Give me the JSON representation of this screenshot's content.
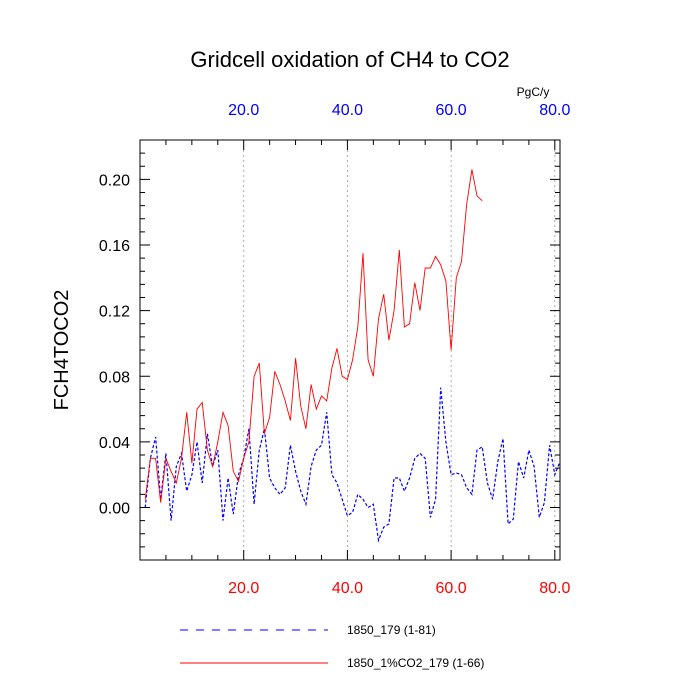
{
  "chart_data": {
    "type": "line",
    "title": "Gridcell oxidation of CH4 to CO2",
    "ylabel": "FCH4TOCO2",
    "top_axis_units": "PgC/y",
    "xlim": [
      0,
      81
    ],
    "ylim": [
      -0.032,
      0.224
    ],
    "x_ticks": [
      20,
      40,
      60,
      80
    ],
    "x_tick_labels": [
      "20.0",
      "40.0",
      "60.0",
      "80.0"
    ],
    "y_ticks": [
      0.0,
      0.04,
      0.08,
      0.12,
      0.16,
      0.2
    ],
    "y_tick_labels": [
      "0.00",
      "0.04",
      "0.08",
      "0.12",
      "0.16",
      "0.20"
    ],
    "colors": {
      "bottom_axis": "#ff0000",
      "top_axis": "#0000ff",
      "grid": "#999999"
    },
    "series": [
      {
        "name": "1850_179 (1-81)",
        "color": "#0000ff",
        "style": "dashed",
        "x": [
          1,
          2,
          3,
          4,
          5,
          6,
          7,
          8,
          9,
          10,
          11,
          12,
          13,
          14,
          15,
          16,
          17,
          18,
          19,
          20,
          21,
          22,
          23,
          24,
          25,
          26,
          27,
          28,
          29,
          30,
          31,
          32,
          33,
          34,
          35,
          36,
          37,
          38,
          39,
          40,
          41,
          42,
          43,
          44,
          45,
          46,
          47,
          48,
          49,
          50,
          51,
          52,
          53,
          54,
          55,
          56,
          57,
          58,
          59,
          60,
          61,
          62,
          63,
          64,
          65,
          66,
          67,
          68,
          69,
          70,
          71,
          72,
          73,
          74,
          75,
          76,
          77,
          78,
          79,
          80,
          81
        ],
        "values": [
          0.0,
          0.03,
          0.043,
          0.005,
          0.033,
          -0.008,
          0.025,
          0.033,
          0.01,
          0.02,
          0.04,
          0.015,
          0.045,
          0.025,
          0.035,
          -0.008,
          0.018,
          -0.004,
          0.02,
          0.03,
          0.048,
          0.002,
          0.035,
          0.048,
          0.018,
          0.012,
          0.008,
          0.012,
          0.038,
          0.022,
          0.01,
          0.002,
          0.025,
          0.035,
          0.038,
          0.058,
          0.02,
          0.015,
          0.005,
          -0.005,
          -0.003,
          0.008,
          0.005,
          0.0,
          0.002,
          -0.02,
          -0.012,
          -0.01,
          0.018,
          0.018,
          0.01,
          0.018,
          0.03,
          0.033,
          0.03,
          -0.006,
          0.005,
          0.073,
          0.04,
          0.02,
          0.021,
          0.02,
          0.012,
          0.008,
          0.035,
          0.037,
          0.015,
          0.005,
          0.028,
          0.042,
          -0.01,
          -0.007,
          0.028,
          0.018,
          0.035,
          0.025,
          -0.006,
          0.003,
          0.038,
          0.02,
          0.028
        ]
      },
      {
        "name": "1850_1%CO2_179 (1-66)",
        "color": "#ff0000",
        "style": "solid",
        "x": [
          1,
          2,
          3,
          4,
          5,
          6,
          7,
          8,
          9,
          10,
          11,
          12,
          13,
          14,
          15,
          16,
          17,
          18,
          19,
          20,
          21,
          22,
          23,
          24,
          25,
          26,
          27,
          28,
          29,
          30,
          31,
          32,
          33,
          34,
          35,
          36,
          37,
          38,
          39,
          40,
          41,
          42,
          43,
          44,
          45,
          46,
          47,
          48,
          49,
          50,
          51,
          52,
          53,
          54,
          55,
          56,
          57,
          58,
          59,
          60,
          61,
          62,
          63,
          64,
          65,
          66
        ],
        "values": [
          0.005,
          0.03,
          0.03,
          0.003,
          0.03,
          0.022,
          0.015,
          0.03,
          0.058,
          0.027,
          0.06,
          0.064,
          0.035,
          0.025,
          0.04,
          0.058,
          0.05,
          0.022,
          0.016,
          0.03,
          0.04,
          0.08,
          0.088,
          0.045,
          0.055,
          0.083,
          0.075,
          0.065,
          0.053,
          0.091,
          0.062,
          0.048,
          0.075,
          0.06,
          0.068,
          0.065,
          0.085,
          0.097,
          0.08,
          0.078,
          0.09,
          0.11,
          0.155,
          0.09,
          0.08,
          0.115,
          0.13,
          0.102,
          0.12,
          0.157,
          0.11,
          0.112,
          0.137,
          0.12,
          0.146,
          0.146,
          0.153,
          0.148,
          0.138,
          0.096,
          0.14,
          0.15,
          0.185,
          0.206,
          0.19,
          0.187
        ]
      }
    ]
  }
}
